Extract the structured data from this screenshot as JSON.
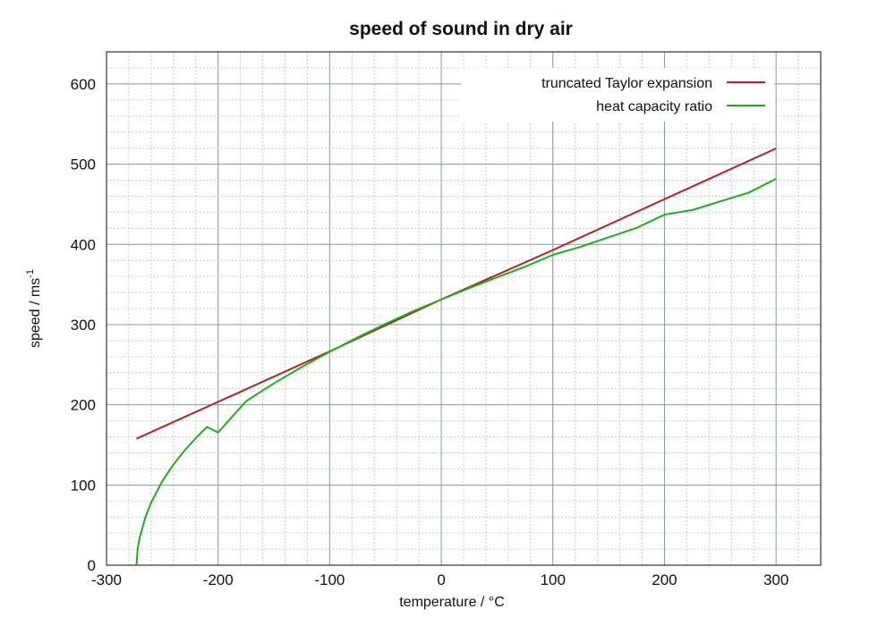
{
  "chart_data": {
    "type": "line",
    "title": "speed of sound in dry air",
    "xlabel": "temperature / °C",
    "ylabel": "speed / ms",
    "ylabel_superscript": "-1",
    "xlim": [
      -300,
      340
    ],
    "ylim": [
      0,
      640
    ],
    "xticks": [
      -300,
      -200,
      -100,
      0,
      100,
      200,
      300
    ],
    "xtick_labels": [
      "-300",
      "-200",
      "-100",
      "0",
      "100",
      "200",
      "300"
    ],
    "yticks": [
      0,
      100,
      200,
      300,
      400,
      500,
      600
    ],
    "ytick_labels": [
      "0",
      "100",
      "200",
      "300",
      "400",
      "500",
      "600"
    ],
    "x_minor_step": 20,
    "y_minor_step": 20,
    "grid": true,
    "legend_position": "top-right",
    "series": [
      {
        "name": "truncated Taylor expansion",
        "color": "#b22222",
        "x": [
          -273.15,
          -200,
          -100,
          0,
          100,
          200,
          300
        ],
        "y": [
          157.7,
          203.6,
          266.6,
          331.3,
          392.9,
          456.3,
          519.6
        ]
      },
      {
        "name": "heat capacity ratio",
        "color": "#22aa22",
        "x": [
          -273.15,
          -272,
          -270,
          -265,
          -260,
          -250,
          -240,
          -230,
          -220,
          -210,
          -200,
          -175,
          -150,
          -125,
          -100,
          -75,
          -50,
          -25,
          0,
          25,
          50,
          75,
          100,
          125,
          150,
          175,
          200,
          225,
          250,
          275,
          300
        ],
        "y": [
          0.0,
          21.5,
          35.8,
          60.4,
          78.0,
          104.8,
          125.5,
          143.0,
          158.4,
          172.4,
          165.4,
          204.4,
          226.7,
          247.1,
          266.1,
          284.0,
          300.9,
          316.7,
          331.3,
          345.4,
          359.0,
          372.1,
          386.9,
          397.0,
          408.9,
          420.5,
          437.0,
          442.8,
          453.6,
          464.2,
          481.7
        ]
      }
    ]
  }
}
